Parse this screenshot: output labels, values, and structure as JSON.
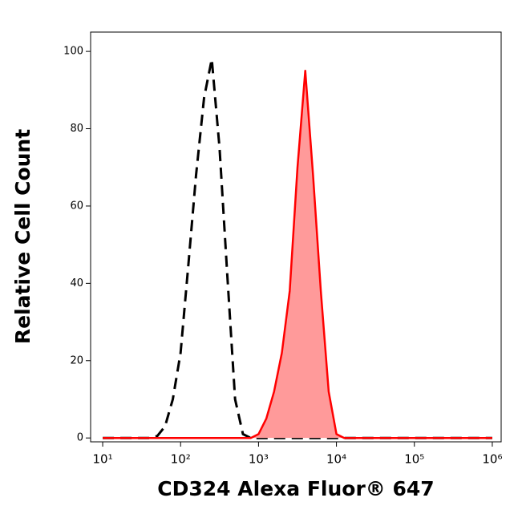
{
  "chart_data": {
    "type": "line",
    "xlabel": "CD324 Alexa Fluor® 647",
    "ylabel": "Relative Cell Count",
    "x_log": true,
    "xlim": [
      7,
      1300000
    ],
    "xticks": [
      {
        "value": 10,
        "label": "10¹"
      },
      {
        "value": 100,
        "label": "10²"
      },
      {
        "value": 1000,
        "label": "10³"
      },
      {
        "value": 10000,
        "label": "10⁴"
      },
      {
        "value": 100000,
        "label": "10⁵"
      },
      {
        "value": 1000000,
        "label": "10⁶"
      }
    ],
    "ylim": [
      -1,
      105
    ],
    "yticks": [
      0,
      20,
      40,
      60,
      80,
      100
    ],
    "x": [
      10,
      12.6,
      15.8,
      20,
      25.1,
      31.6,
      39.8,
      50.1,
      63.1,
      79.4,
      100,
      126,
      158,
      200,
      251,
      316,
      398,
      501,
      631,
      794,
      1000,
      1259,
      1585,
      1995,
      2512,
      3162,
      3981,
      5012,
      6310,
      7943,
      10000,
      12589,
      15849,
      19953,
      25119,
      31623,
      39811,
      50119,
      63096,
      79433,
      100000,
      125893,
      158489,
      199526,
      251189,
      316228,
      398107,
      501187,
      630957,
      794328,
      1000000
    ],
    "series": [
      {
        "color": "#000000",
        "dash": true,
        "values": [
          0,
          0,
          0,
          0,
          0,
          0,
          0,
          0.5,
          3,
          10,
          22,
          45,
          68,
          88,
          98,
          75,
          42,
          10,
          1,
          0,
          0,
          0,
          0,
          0,
          0,
          0,
          0,
          0,
          0,
          0,
          0,
          0,
          0,
          0,
          0,
          0,
          0,
          0,
          0,
          0,
          0,
          0,
          0,
          0,
          0,
          0,
          0,
          0,
          0,
          0,
          0
        ]
      },
      {
        "color": "#ff0000",
        "fill": "#ff9a9a",
        "dash": false,
        "values": [
          0,
          0,
          0,
          0,
          0,
          0,
          0,
          0,
          0,
          0,
          0,
          0,
          0,
          0,
          0,
          0,
          0,
          0,
          0,
          0,
          1,
          5,
          12,
          22,
          38,
          70,
          95,
          68,
          38,
          12,
          1,
          0,
          0,
          0,
          0,
          0,
          0,
          0,
          0,
          0,
          0,
          0,
          0,
          0,
          0,
          0,
          0,
          0,
          0,
          0,
          0
        ]
      }
    ]
  }
}
